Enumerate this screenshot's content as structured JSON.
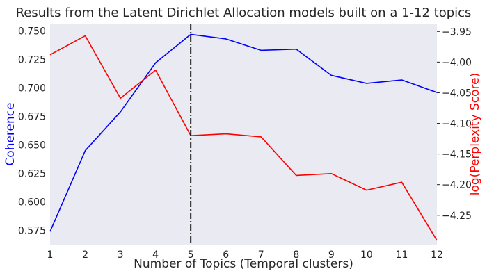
{
  "chart_data": {
    "type": "line",
    "title": "Results from the Latent Dirichlet Allocation models built on a 1-12 topics",
    "xlabel": "Number of Topics (Temporal clusters)",
    "ylabel_left": "Coherence",
    "ylabel_right": "log(Perplexity Score)",
    "x": [
      1,
      2,
      3,
      4,
      5,
      6,
      7,
      8,
      9,
      10,
      11,
      12
    ],
    "x_ticks": [
      "1",
      "2",
      "3",
      "4",
      "5",
      "6",
      "7",
      "8",
      "9",
      "10",
      "11",
      "12"
    ],
    "xlim": [
      1,
      12
    ],
    "ylim_left": [
      0.5625,
      0.7564
    ],
    "ylim_right": [
      -4.2979,
      -3.9372
    ],
    "y_ticks_left": [
      "0.575",
      "0.600",
      "0.625",
      "0.650",
      "0.675",
      "0.700",
      "0.725",
      "0.750"
    ],
    "y_ticks_left_values": [
      0.575,
      0.6,
      0.625,
      0.65,
      0.675,
      0.7,
      0.725,
      0.75
    ],
    "y_ticks_right": [
      "−4.25",
      "−4.20",
      "−4.15",
      "−4.10",
      "−4.05",
      "−4.00",
      "−3.95"
    ],
    "y_ticks_right_values": [
      -4.25,
      -4.2,
      -4.15,
      -4.1,
      -4.05,
      -4.0,
      -3.95
    ],
    "grid": false,
    "vline": {
      "x": 5,
      "color": "#1a1a1a",
      "style": "dash-dot"
    },
    "background_color": "#eaeaf2",
    "series": [
      {
        "axis": "left",
        "color": "#0000ff",
        "values": [
          0.574,
          0.645,
          0.679,
          0.722,
          0.747,
          0.743,
          0.733,
          0.734,
          0.711,
          0.704,
          0.707,
          0.696
        ]
      },
      {
        "axis": "right",
        "color": "#ff0000",
        "values": [
          -3.988,
          -3.957,
          -4.059,
          -4.013,
          -4.12,
          -4.117,
          -4.122,
          -4.185,
          -4.182,
          -4.209,
          -4.196,
          -4.291
        ]
      }
    ]
  }
}
